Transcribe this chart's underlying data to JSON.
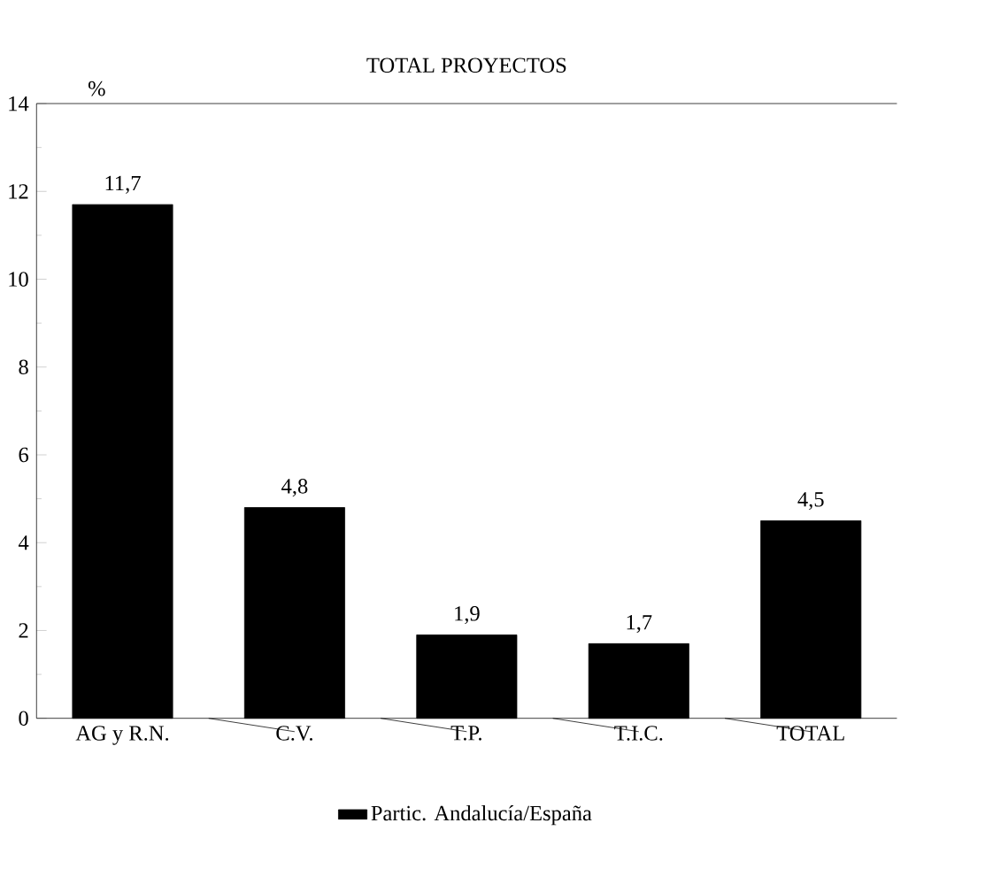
{
  "chart_data": {
    "type": "bar",
    "title": "TOTAL PROYECTOS",
    "ylabel": "%",
    "categories": [
      "AG y R.N.",
      "C.V.",
      "T.P.",
      "T.I.C.",
      "TOTAL"
    ],
    "series": [
      {
        "name": "Partic. Andalucía/España",
        "color": "#000000",
        "values": [
          11.7,
          4.8,
          1.9,
          1.7,
          4.5
        ],
        "value_labels": [
          "11,7",
          "4,8",
          "1,9",
          "1,7",
          "4,5"
        ]
      }
    ],
    "ylim": [
      0,
      14
    ],
    "yticks": [
      0,
      2,
      4,
      6,
      8,
      10,
      12,
      14
    ],
    "grid": false,
    "legend": "bottom"
  }
}
